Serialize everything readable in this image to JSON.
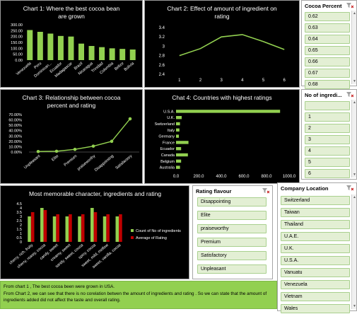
{
  "chart_data": [
    {
      "type": "bar",
      "title": "Chart 1: Where the best  cocoa bean are grown",
      "categories": [
        "Venezuela",
        "Peru",
        "Dominican...",
        "Ecuador",
        "Madagascar",
        "Brazil",
        "Nicaragua",
        "Trinidad",
        "Colombia",
        "Belize",
        "Bolivia"
      ],
      "values": [
        255,
        240,
        225,
        205,
        200,
        140,
        120,
        110,
        100,
        95,
        90
      ],
      "yticks": [
        "0.00",
        "50.00",
        "100.00",
        "150.00",
        "200.00",
        "250.00",
        "300.00"
      ],
      "ylim": [
        0,
        300
      ],
      "color": "#92d050"
    },
    {
      "type": "line",
      "title": "Chart 2: Effect of amount of ingredient on rating",
      "x": [
        1,
        2,
        3,
        4,
        5,
        6
      ],
      "xticks": [
        "1",
        "2",
        "3",
        "4",
        "5",
        "6"
      ],
      "values": [
        2.8,
        2.95,
        3.2,
        3.25,
        3.1,
        2.93
      ],
      "yticks": [
        "2.4",
        "2.6",
        "2.8",
        "3",
        "3.2",
        "3.4"
      ],
      "ylim": [
        2.4,
        3.4
      ],
      "color": "#92d050"
    },
    {
      "type": "line",
      "title": "Chart 3: Relationship between cocoa percent and rating",
      "categories": [
        "Unpleasant",
        "Elite",
        "Premium",
        "praiseworthy",
        "Disappointing",
        "Satisfactory"
      ],
      "values": [
        1.0,
        1.5,
        5.0,
        11.0,
        20.0,
        62.0
      ],
      "yticks": [
        "0.00%",
        "10.00%",
        "20.00%",
        "30.00%",
        "40.00%",
        "50.00%",
        "60.00%",
        "70.00%"
      ],
      "ylim": [
        0,
        70
      ],
      "color": "#92d050"
    },
    {
      "type": "bar",
      "orientation": "horizontal",
      "title": "Chat 4: Countries with highest ratings",
      "categories": [
        "U.S.A.",
        "U.K.",
        "Switzerland",
        "Italy",
        "Germany",
        "France",
        "Ecuador",
        "Canada",
        "Belgium",
        "Australia"
      ],
      "values": [
        920,
        50,
        35,
        30,
        25,
        110,
        45,
        105,
        45,
        35
      ],
      "xticks": [
        "0.0",
        "200.0",
        "400.0",
        "600.0",
        "800.0",
        "1000.0"
      ],
      "xlim": [
        0,
        1000
      ],
      "color": "#92d050"
    },
    {
      "type": "bar",
      "title": "Most memorable character, ingredients and rating",
      "categories": [
        "cherry, rich, fruity",
        "cherry, roasty, cocoa",
        "candy, sweet",
        "creamy, sweet",
        "sandy, sweet, cocoa",
        "spicy, cocoa",
        "sweet, mild, mellow",
        "sweet, vanilla, cocoa"
      ],
      "series": [
        {
          "name": "Count of No of ingredients",
          "color": "#92d050",
          "values": [
            3,
            4,
            3,
            3,
            3,
            4,
            3,
            3
          ]
        },
        {
          "name": "Average of Rating",
          "color": "#c00000",
          "values": [
            3.5,
            3.75,
            3.25,
            3.25,
            3.25,
            3.5,
            3.25,
            3.25
          ]
        }
      ],
      "yticks": [
        "0",
        "0.5",
        "1",
        "1.5",
        "2",
        "2.5",
        "3",
        "3.5",
        "4",
        "4.5"
      ],
      "ylim": [
        0,
        4.5
      ]
    }
  ],
  "slicers": {
    "cocoa_percent": {
      "title": "Cocoa Percent",
      "items": [
        "0.62",
        "0.63",
        "0.64",
        "0.65",
        "0.66",
        "0.67",
        "0.68"
      ]
    },
    "no_of_ingredients": {
      "title": "No of ingredi...",
      "items": [
        "",
        "1",
        "2",
        "3",
        "4",
        "5",
        "6"
      ]
    },
    "rating_flavour": {
      "title": "Rating flavour",
      "items": [
        "Disappointing",
        "Elite",
        "praiseworthy",
        "Premium",
        "Satisfactory",
        "Unpleasant"
      ]
    },
    "company_location": {
      "title": "Company Location",
      "items": [
        "Switzerland",
        "Taiwan",
        "Thailand",
        "U.A.E.",
        "U.K.",
        "U.S.A.",
        "Vanuatu",
        "Venezuela",
        "Vietnam",
        "Wales"
      ]
    }
  },
  "footer": {
    "line1": "From chart 1 , The best cocoa been were grown in USA.",
    "line2": "From Chart 2, we can see that there is no corelation betwen the amount of ingredients and rating . So we can state that the amount of ingredients added did not affect the taste and overall rating."
  }
}
